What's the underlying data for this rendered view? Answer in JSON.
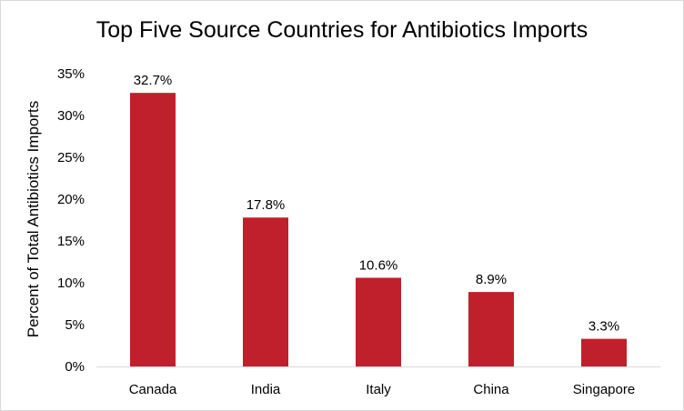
{
  "chart_data": {
    "type": "bar",
    "title": "Top Five Source Countries for Antibiotics Imports",
    "xlabel": "",
    "ylabel": "Percent of Total Antibiotics Imports",
    "categories": [
      "Canada",
      "India",
      "Italy",
      "China",
      "Singapore"
    ],
    "values": [
      32.7,
      17.8,
      10.6,
      8.9,
      3.3
    ],
    "data_labels": [
      "32.7%",
      "17.8%",
      "10.6%",
      "8.9%",
      "3.3%"
    ],
    "ylim": [
      0,
      35
    ],
    "yticks": [
      0,
      5,
      10,
      15,
      20,
      25,
      30,
      35
    ],
    "ytick_labels": [
      "0%",
      "5%",
      "10%",
      "15%",
      "20%",
      "25%",
      "30%",
      "35%"
    ],
    "grid": false,
    "legend": "none",
    "bar_color": "#c0202b"
  }
}
